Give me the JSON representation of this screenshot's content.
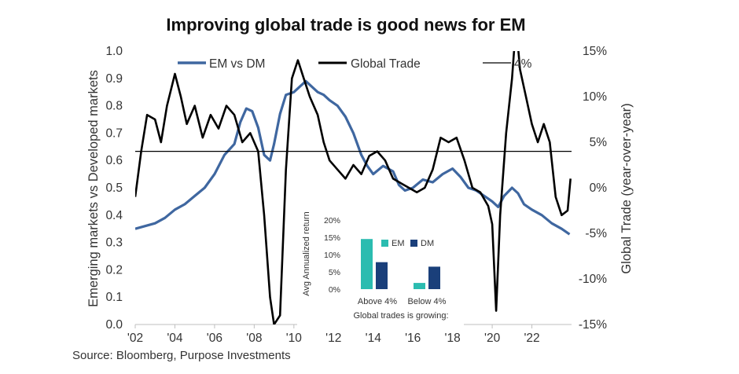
{
  "chart_data": {
    "type": "line",
    "title": "Improving global trade is good news for EM",
    "source": "Source: Bloomberg, Purpose Investments",
    "ylabel_left": "Emerging markets vs Developed markets",
    "ylabel_right": "Global Trade (year-over-year)",
    "x_ticks": [
      "'02",
      "'04",
      "'06",
      "'08",
      "'10",
      "'12",
      "'14",
      "'16",
      "'18",
      "'20",
      "'22"
    ],
    "xlim": [
      2002,
      2024
    ],
    "ylim_left": [
      0,
      1
    ],
    "ylim_right": [
      -15,
      15
    ],
    "y_ticks_left": [
      "0.0",
      "0.1",
      "0.2",
      "0.3",
      "0.4",
      "0.5",
      "0.6",
      "0.7",
      "0.8",
      "0.9",
      "1.0"
    ],
    "y_ticks_right": [
      "-15%",
      "-10%",
      "-5%",
      "0%",
      "5%",
      "10%",
      "15%"
    ],
    "legend": [
      "EM vs DM",
      "Global Trade",
      "4%"
    ],
    "colors": {
      "em_vs_dm": "#3f67a0",
      "global_trade": "#000000",
      "threshold": "#000000",
      "inset_em": "#2bbcb0",
      "inset_dm": "#1a3f7a"
    },
    "series": [
      {
        "name": "EM vs DM",
        "axis": "left",
        "x": [
          2002.0,
          2002.5,
          2003.0,
          2003.5,
          2004.0,
          2004.5,
          2005.0,
          2005.5,
          2006.0,
          2006.5,
          2007.0,
          2007.3,
          2007.6,
          2007.9,
          2008.2,
          2008.5,
          2008.8,
          2009.0,
          2009.3,
          2009.6,
          2010.0,
          2010.3,
          2010.6,
          2010.9,
          2011.2,
          2011.5,
          2011.8,
          2012.2,
          2012.6,
          2013.0,
          2013.4,
          2013.7,
          2014.0,
          2014.5,
          2015.0,
          2015.3,
          2015.6,
          2016.0,
          2016.5,
          2017.0,
          2017.5,
          2018.0,
          2018.4,
          2018.8,
          2019.2,
          2019.6,
          2020.0,
          2020.3,
          2020.6,
          2021.0,
          2021.3,
          2021.6,
          2022.0,
          2022.5,
          2023.0,
          2023.5,
          2023.9
        ],
        "values": [
          0.35,
          0.36,
          0.37,
          0.39,
          0.42,
          0.44,
          0.47,
          0.5,
          0.55,
          0.62,
          0.66,
          0.74,
          0.79,
          0.78,
          0.72,
          0.62,
          0.6,
          0.66,
          0.77,
          0.84,
          0.85,
          0.87,
          0.89,
          0.87,
          0.85,
          0.84,
          0.82,
          0.8,
          0.76,
          0.7,
          0.62,
          0.58,
          0.55,
          0.58,
          0.56,
          0.51,
          0.49,
          0.5,
          0.53,
          0.52,
          0.55,
          0.57,
          0.54,
          0.5,
          0.49,
          0.47,
          0.45,
          0.43,
          0.47,
          0.5,
          0.48,
          0.44,
          0.42,
          0.4,
          0.37,
          0.35,
          0.33
        ]
      },
      {
        "name": "Global Trade",
        "axis": "right",
        "x": [
          2002.0,
          2002.3,
          2002.6,
          2003.0,
          2003.3,
          2003.6,
          2004.0,
          2004.3,
          2004.6,
          2005.0,
          2005.4,
          2005.8,
          2006.2,
          2006.6,
          2007.0,
          2007.4,
          2007.8,
          2008.2,
          2008.5,
          2008.8,
          2009.0,
          2009.3,
          2009.6,
          2009.9,
          2010.2,
          2010.5,
          2010.8,
          2011.2,
          2011.5,
          2011.8,
          2012.2,
          2012.6,
          2013.0,
          2013.4,
          2013.8,
          2014.2,
          2014.6,
          2015.0,
          2015.4,
          2015.8,
          2016.2,
          2016.6,
          2017.0,
          2017.4,
          2017.8,
          2018.2,
          2018.6,
          2019.0,
          2019.4,
          2019.8,
          2020.0,
          2020.2,
          2020.4,
          2020.7,
          2021.0,
          2021.2,
          2021.4,
          2021.7,
          2022.0,
          2022.3,
          2022.6,
          2022.9,
          2023.2,
          2023.5,
          2023.8,
          2023.95
        ],
        "values": [
          -1.0,
          4.0,
          8.0,
          7.5,
          5.0,
          9.0,
          12.5,
          10.0,
          7.0,
          9.0,
          5.5,
          8.0,
          6.5,
          9.0,
          8.0,
          5.0,
          6.0,
          4.0,
          -3.0,
          -12.0,
          -15.0,
          -14.0,
          2.0,
          12.0,
          14.0,
          12.0,
          10.0,
          8.0,
          5.0,
          3.0,
          2.0,
          1.0,
          2.5,
          1.5,
          3.5,
          4.0,
          3.0,
          1.0,
          0.5,
          0.0,
          -0.5,
          0.0,
          2.0,
          5.5,
          5.0,
          5.5,
          3.0,
          0.0,
          -0.5,
          -2.0,
          -4.0,
          -13.5,
          -3.0,
          6.0,
          12.0,
          18.0,
          13.0,
          10.0,
          7.0,
          5.0,
          7.0,
          5.0,
          -1.0,
          -3.0,
          -2.5,
          1.0
        ]
      },
      {
        "name": "4%",
        "axis": "right",
        "x": [
          2002,
          2024
        ],
        "values": [
          4,
          4
        ]
      }
    ],
    "inset": {
      "type": "bar",
      "ylabel": "Avg Annualized return",
      "xlabel": "Global trades is growing:",
      "categories": [
        "Above 4%",
        "Below 4%"
      ],
      "y_ticks": [
        "0%",
        "5%",
        "10%",
        "15%",
        "20%"
      ],
      "ylim": [
        0,
        20
      ],
      "series": [
        {
          "name": "EM",
          "values": [
            14.5,
            1.8
          ]
        },
        {
          "name": "DM",
          "values": [
            7.8,
            6.5
          ]
        }
      ]
    }
  }
}
